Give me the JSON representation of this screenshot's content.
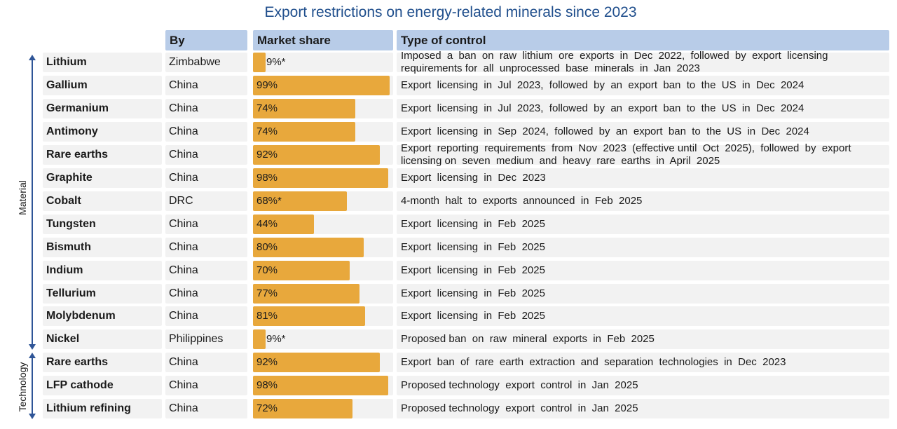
{
  "title": "Export restrictions on energy-related minerals since 2023",
  "headers": {
    "by": "By",
    "market_share": "Market share",
    "type": "Type  of control"
  },
  "groups": {
    "material": "Material",
    "technology": "Technology"
  },
  "colors": {
    "bar": "#e8a83c",
    "header": "#b8cce8",
    "cell": "#f2f2f2",
    "title": "#1f4e8c",
    "axis": "#2f5597"
  },
  "chart_data": {
    "type": "table",
    "title": "Export restrictions on energy-related minerals since 2023",
    "columns": [
      "By",
      "Market share",
      "Type  of control"
    ],
    "xlim": [
      0,
      100
    ],
    "rows": [
      {
        "name": "Lithium",
        "by": "Zimbabwe",
        "share": 9,
        "share_label": "9%*",
        "type": "Imposed  a  ban  on  raw  lithium  ore  exports  in  Dec  2022,  followed  by  export  licensing  requirements for  all  unprocessed  base  minerals  in  Jan  2023",
        "group": "Material"
      },
      {
        "name": "Gallium",
        "by": "China",
        "share": 99,
        "share_label": "99%",
        "type": "Export  licensing  in  Jul  2023,  followed  by  an  export  ban  to  the  US  in  Dec  2024",
        "group": "Material"
      },
      {
        "name": "Germanium",
        "by": "China",
        "share": 74,
        "share_label": "74%",
        "type": "Export  licensing  in  Jul  2023,  followed  by  an  export  ban  to  the  US  in  Dec  2024",
        "group": "Material"
      },
      {
        "name": "Antimony",
        "by": "China",
        "share": 74,
        "share_label": "74%",
        "type": "Export  licensing  in  Sep  2024,  followed  by  an  export  ban  to  the  US  in  Dec  2024",
        "group": "Material"
      },
      {
        "name": "Rare earths",
        "by": "China",
        "share": 92,
        "share_label": "92%",
        "type": "Export  reporting  requirements  from  Nov  2023  (effective until  Oct  2025),  followed  by  export  licensing on  seven  medium  and  heavy  rare  earths  in  April  2025",
        "group": "Material"
      },
      {
        "name": "Graphite",
        "by": "China",
        "share": 98,
        "share_label": "98%",
        "type": "Export  licensing  in  Dec  2023",
        "group": "Material"
      },
      {
        "name": "Cobalt",
        "by": "DRC",
        "share": 68,
        "share_label": "68%*",
        "type": "4-month  halt  to  exports  announced  in  Feb  2025",
        "group": "Material"
      },
      {
        "name": "Tungsten",
        "by": "China",
        "share": 44,
        "share_label": "44%",
        "type": "Export  licensing  in  Feb  2025",
        "group": "Material"
      },
      {
        "name": "Bismuth",
        "by": "China",
        "share": 80,
        "share_label": "80%",
        "type": "Export  licensing  in  Feb  2025",
        "group": "Material"
      },
      {
        "name": "Indium",
        "by": "China",
        "share": 70,
        "share_label": "70%",
        "type": "Export  licensing  in  Feb  2025",
        "group": "Material"
      },
      {
        "name": "Tellurium",
        "by": "China",
        "share": 77,
        "share_label": "77%",
        "type": "Export  licensing  in  Feb  2025",
        "group": "Material"
      },
      {
        "name": "Molybdenum",
        "by": "China",
        "share": 81,
        "share_label": "81%",
        "type": "Export  licensing  in  Feb  2025",
        "group": "Material"
      },
      {
        "name": "Nickel",
        "by": "Philippines",
        "share": 9,
        "share_label": "9%*",
        "type": "Proposed ban  on  raw  mineral  exports  in  Feb  2025",
        "group": "Material"
      },
      {
        "name": "Rare earths",
        "by": "China",
        "share": 92,
        "share_label": "92%",
        "type": "Export  ban  of  rare  earth  extraction  and  separation  technologies  in  Dec  2023",
        "group": "Technology"
      },
      {
        "name": "LFP  cathode",
        "by": "China",
        "share": 98,
        "share_label": "98%",
        "type": "Proposed technology  export  control  in  Jan  2025",
        "group": "Technology"
      },
      {
        "name": "Lithium  refining",
        "by": "China",
        "share": 72,
        "share_label": "72%",
        "type": "Proposed technology  export  control  in  Jan  2025",
        "group": "Technology"
      }
    ]
  }
}
